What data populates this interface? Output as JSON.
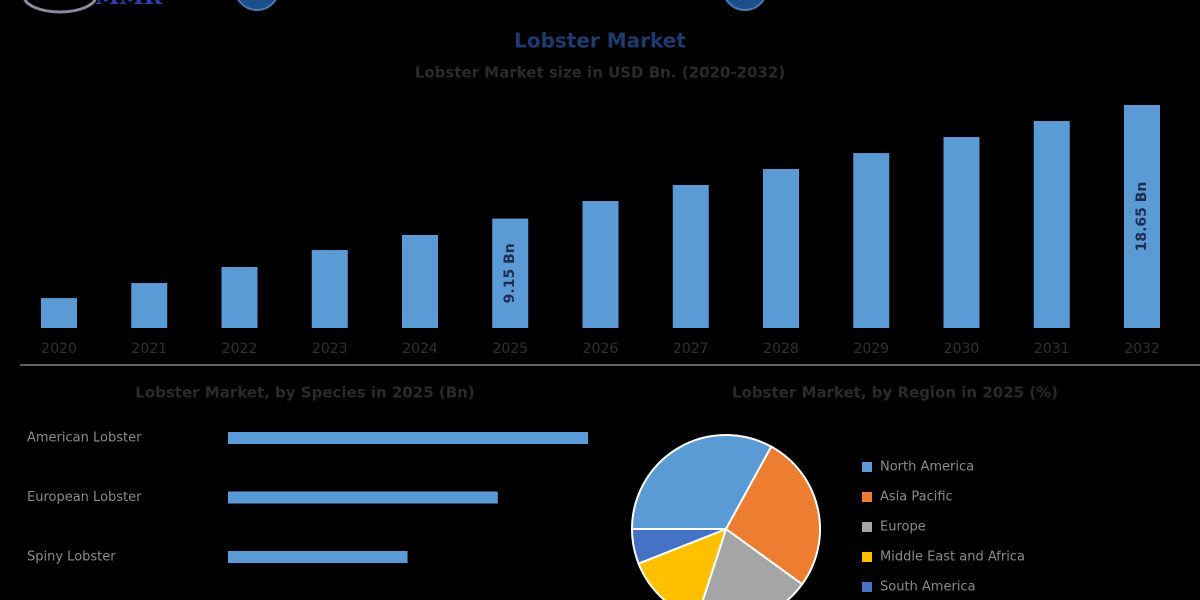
{
  "header": {
    "logo": "MMR"
  },
  "chart_data": [
    {
      "type": "bar",
      "title": "Lobster Market",
      "subtitle": "Lobster Market size in USD Bn. (2020-2032)",
      "categories": [
        "2020",
        "2021",
        "2022",
        "2023",
        "2024",
        "2025",
        "2026",
        "2027",
        "2028",
        "2029",
        "2030",
        "2031",
        "2032"
      ],
      "values": [
        2.5,
        3.76,
        5.1,
        6.52,
        7.78,
        9.15,
        10.62,
        11.96,
        13.3,
        14.63,
        15.97,
        17.31,
        18.65
      ],
      "value_labels": [
        null,
        null,
        null,
        null,
        null,
        "9.15 Bn",
        null,
        null,
        null,
        null,
        null,
        null,
        "18.65 Bn"
      ],
      "color": "#5b9bd5"
    },
    {
      "type": "hbar",
      "title": "Lobster Market, by Species in 2025 (Bn)",
      "categories": [
        "American Lobster",
        "European Lobster",
        "Spiny Lobster"
      ],
      "values": [
        4.07,
        3.05,
        2.03
      ],
      "color": "#5b9bd5"
    },
    {
      "type": "pie",
      "title": "Lobster Market, by Region in 2025 (%)",
      "categories": [
        "North America",
        "Asia Pacific",
        "Europe",
        "Middle East and Africa",
        "South America"
      ],
      "values": [
        33,
        27,
        20,
        14,
        6
      ],
      "colors": [
        "#5b9bd5",
        "#ed7d31",
        "#a5a5a5",
        "#ffc000",
        "#4472c4"
      ],
      "legend": "right"
    }
  ]
}
